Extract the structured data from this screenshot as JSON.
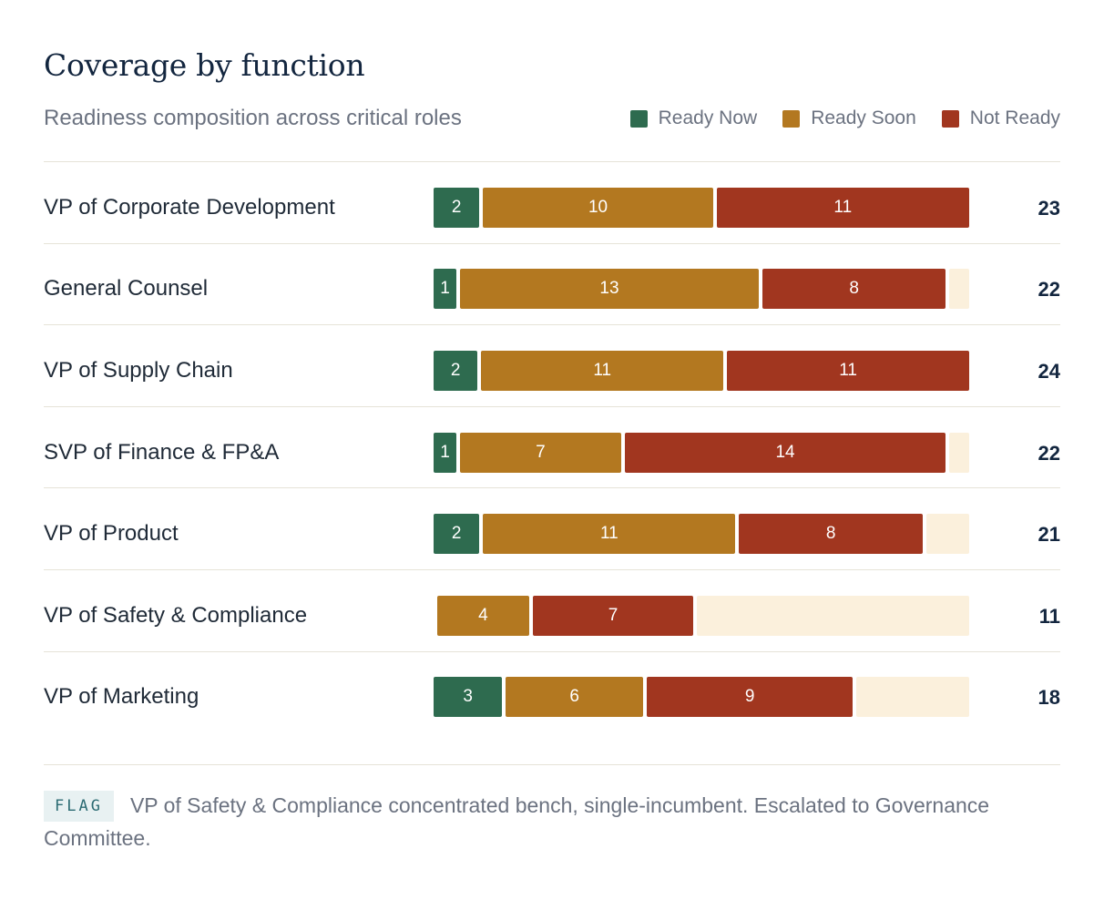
{
  "header": {
    "title": "Coverage by function",
    "subtitle": "Readiness composition across critical roles"
  },
  "legend": [
    {
      "label": "Ready Now",
      "color": "#2e6b4f"
    },
    {
      "label": "Ready Soon",
      "color": "#b37820"
    },
    {
      "label": "Not Ready",
      "color": "#a1361f"
    }
  ],
  "colors": {
    "ready_now": "#2e6b4f",
    "ready_soon": "#b37820",
    "not_ready": "#a1361f",
    "empty_track": "#fbf0dc"
  },
  "chart_data": {
    "type": "bar",
    "orientation": "horizontal",
    "stacked": true,
    "title": "Coverage by function",
    "subtitle": "Readiness composition across critical roles",
    "legend_position": "top-right",
    "grid": false,
    "categories": [
      "VP of Corporate Development",
      "General Counsel",
      "VP of Supply Chain",
      "SVP of Finance & FP&A",
      "VP of Product",
      "VP of Safety & Compliance",
      "VP of Marketing"
    ],
    "series": [
      {
        "name": "Ready Now",
        "values": [
          2,
          1,
          2,
          1,
          2,
          0,
          3
        ]
      },
      {
        "name": "Ready Soon",
        "values": [
          10,
          13,
          11,
          7,
          11,
          4,
          6
        ]
      },
      {
        "name": "Not Ready",
        "values": [
          11,
          8,
          11,
          14,
          8,
          7,
          9
        ]
      }
    ],
    "totals": [
      "23",
      "22",
      "24",
      "22",
      "21",
      "11",
      "18"
    ]
  },
  "footer": {
    "flag_label": "FLAG",
    "flag_text": "VP of Safety & Compliance concentrated bench, single-incumbent. Escalated to Governance Committee."
  }
}
